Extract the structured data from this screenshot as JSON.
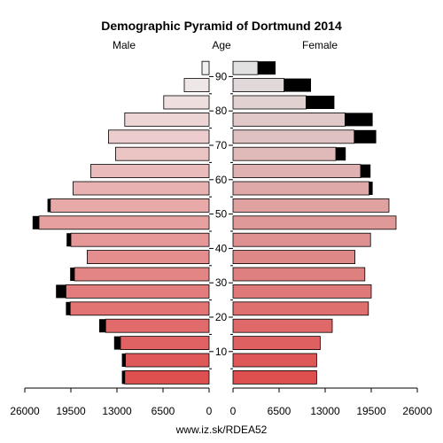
{
  "chart_data": {
    "type": "bar",
    "title": "Demographic Pyramid of Dortmund 2014",
    "left_header": "Male",
    "center_header": "Age",
    "right_header": "Female",
    "footer": "www.iz.sk/RDEA52",
    "x_max": 26000,
    "x_ticks": [
      26000,
      19500,
      13000,
      6500,
      0
    ],
    "age_ticks": [
      10,
      20,
      30,
      40,
      50,
      60,
      70,
      80,
      90
    ],
    "age_groups": [
      "0-4",
      "5-9",
      "10-14",
      "15-19",
      "20-24",
      "25-29",
      "30-34",
      "35-39",
      "40-44",
      "45-49",
      "50-54",
      "55-59",
      "60-64",
      "65-69",
      "70-74",
      "75-79",
      "80-84",
      "85-89",
      "90+"
    ],
    "series": [
      {
        "name": "Male",
        "values": [
          11900,
          11800,
          12500,
          14600,
          19600,
          20200,
          19000,
          17200,
          19500,
          24000,
          22400,
          19200,
          16700,
          13200,
          14200,
          11900,
          6400,
          3500,
          1000
        ],
        "excess": [
          400,
          500,
          900,
          900,
          600,
          1400,
          600,
          0,
          600,
          900,
          400,
          0,
          0,
          0,
          0,
          0,
          0,
          0,
          0
        ]
      },
      {
        "name": "Female",
        "values": [
          11800,
          11800,
          12300,
          14000,
          19100,
          19500,
          18600,
          17200,
          19400,
          23000,
          22000,
          19200,
          18000,
          14500,
          17100,
          15800,
          10300,
          7200,
          3500
        ],
        "excess": [
          0,
          0,
          0,
          0,
          0,
          0,
          0,
          0,
          0,
          0,
          0,
          500,
          1400,
          1400,
          3100,
          3900,
          4000,
          3800,
          2500
        ]
      }
    ]
  },
  "colors": {
    "excess": "#000000",
    "bar_stroke": "#000000"
  }
}
